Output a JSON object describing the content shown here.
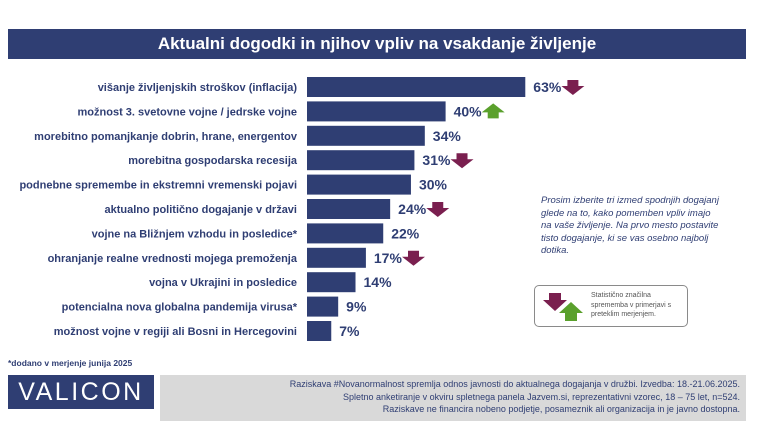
{
  "header": {
    "title": "Aktualni dogodki in njihov vpliv na vsakdanje življenje"
  },
  "chart_data": {
    "type": "bar",
    "orientation": "horizontal",
    "title": "Aktualni dogodki in njihov vpliv na vsakdanje življenje",
    "xlabel": "",
    "ylabel": "",
    "xlim": [
      0,
      100
    ],
    "grid": false,
    "bar_color": "#2f3e73",
    "categories": [
      "višanje življenjskih stroškov (inflacija)",
      "možnost 3. svetovne vojne / jedrske vojne",
      "morebitno pomanjkanje dobrin, hrane, energentov",
      "morebitna gospodarska recesija",
      "podnebne spremembe in ekstremni vremenski pojavi",
      "aktualno politično dogajanje v državi",
      "vojne na Bližnjem vzhodu in posledice*",
      "ohranjanje realne vrednosti mojega premoženja",
      "vojna v Ukrajini in posledice",
      "potencialna nova globalna pandemija virusa*",
      "možnost vojne v regiji ali Bosni in Hercegovini"
    ],
    "values": [
      63,
      40,
      34,
      31,
      30,
      24,
      22,
      17,
      14,
      9,
      7
    ],
    "value_labels": [
      "63%",
      "40%",
      "34%",
      "31%",
      "30%",
      "24%",
      "22%",
      "17%",
      "14%",
      "9%",
      "7%"
    ],
    "changes": [
      "down",
      "up",
      "none",
      "down",
      "none",
      "down",
      "none",
      "down",
      "none",
      "none",
      "none"
    ],
    "change_colors": {
      "down": "#7a1f4f",
      "up": "#5aa02c"
    }
  },
  "side_note": "Prosim izberite tri izmed spodnjih dogajanj glede na to, kako pomemben vpliv imajo na vaše življenje. Na prvo mesto postavite tisto dogajanje, ki se vas osebno najbolj dotika.",
  "legend": {
    "text": "Statistično značilna sprememba v primerjavi s preteklim merjenjem."
  },
  "footnote": "*dodano v merjenje junija 2025",
  "logo": "VALICON",
  "footer": {
    "line1": "Raziskava #Novanormalnost spremlja odnos javnosti do aktualnega dogajanja v družbi. Izvedba: 18.-21.06.2025.",
    "line2": "Spletno anketiranje v okviru spletnega panela Jazvem.si, reprezentativni vzorec, 18 – 75 let, n=524.",
    "line3": "Raziskave ne financira nobeno podjetje, posameznik ali organizacija in je javno dostopna."
  }
}
